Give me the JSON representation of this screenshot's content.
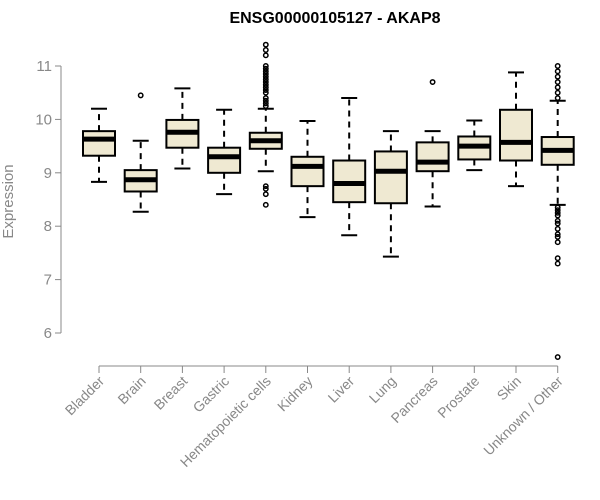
{
  "chart_data": {
    "type": "boxplot",
    "title": "ENSG00000105127 - AKAP8",
    "ylabel": "Expression",
    "xlabel": "",
    "ylim": [
      5.5,
      11.2
    ],
    "yticks": [
      6,
      7,
      8,
      9,
      10,
      11
    ],
    "grid": false,
    "categories": [
      "Bladder",
      "Brain",
      "Breast",
      "Gastric",
      "Hematopoietic cells",
      "Kidney",
      "Liver",
      "Lung",
      "Pancreas",
      "Prostate",
      "Skin",
      "Unknown / Other"
    ],
    "boxes": [
      {
        "whisker_low": 8.83,
        "q1": 9.32,
        "median": 9.63,
        "q3": 9.78,
        "whisker_high": 10.2,
        "outliers": []
      },
      {
        "whisker_low": 8.27,
        "q1": 8.65,
        "median": 8.87,
        "q3": 9.05,
        "whisker_high": 9.6,
        "outliers": [
          10.45
        ]
      },
      {
        "whisker_low": 9.08,
        "q1": 9.47,
        "median": 9.76,
        "q3": 9.99,
        "whisker_high": 10.58,
        "outliers": []
      },
      {
        "whisker_low": 8.6,
        "q1": 9.0,
        "median": 9.3,
        "q3": 9.47,
        "whisker_high": 10.18,
        "outliers": []
      },
      {
        "whisker_low": 9.03,
        "q1": 9.45,
        "median": 9.6,
        "q3": 9.75,
        "whisker_high": 10.2,
        "outliers": [
          8.4,
          8.6,
          8.7,
          8.75,
          10.25,
          10.3,
          10.35,
          10.4,
          10.5,
          10.55,
          10.6,
          10.65,
          10.7,
          10.75,
          10.8,
          10.85,
          10.9,
          10.95,
          11.0,
          11.2,
          11.3,
          11.4
        ]
      },
      {
        "whisker_low": 8.17,
        "q1": 8.75,
        "median": 9.12,
        "q3": 9.3,
        "whisker_high": 9.97,
        "outliers": []
      },
      {
        "whisker_low": 7.83,
        "q1": 8.45,
        "median": 8.8,
        "q3": 9.23,
        "whisker_high": 10.4,
        "outliers": []
      },
      {
        "whisker_low": 7.43,
        "q1": 8.43,
        "median": 9.03,
        "q3": 9.4,
        "whisker_high": 9.78,
        "outliers": []
      },
      {
        "whisker_low": 8.37,
        "q1": 9.03,
        "median": 9.2,
        "q3": 9.57,
        "whisker_high": 9.78,
        "outliers": [
          10.7
        ]
      },
      {
        "whisker_low": 9.05,
        "q1": 9.25,
        "median": 9.5,
        "q3": 9.68,
        "whisker_high": 9.98,
        "outliers": []
      },
      {
        "whisker_low": 8.75,
        "q1": 9.23,
        "median": 9.57,
        "q3": 10.18,
        "whisker_high": 10.88,
        "outliers": []
      },
      {
        "whisker_low": 8.4,
        "q1": 9.15,
        "median": 9.42,
        "q3": 9.67,
        "whisker_high": 10.35,
        "outliers": [
          5.55,
          7.3,
          7.4,
          7.7,
          7.8,
          7.85,
          7.95,
          8.05,
          8.1,
          8.2,
          8.25,
          8.3,
          8.35,
          10.4,
          10.5,
          10.6,
          10.7,
          10.8,
          10.9,
          11.0
        ]
      }
    ]
  }
}
